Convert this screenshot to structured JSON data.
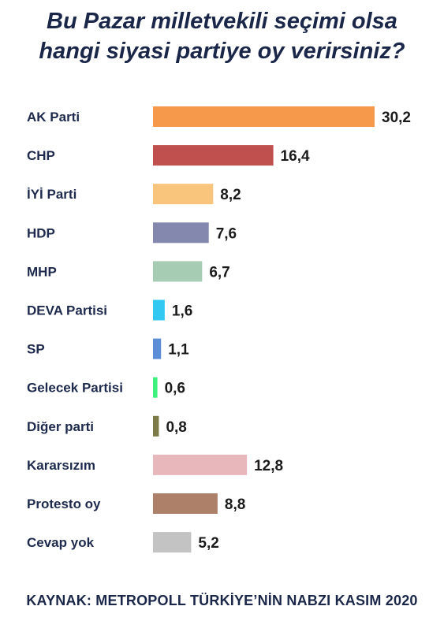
{
  "title_line1": "Bu Pazar milletvekili seçimi olsa",
  "title_line2": "hangi siyasi partiye oy verirsiniz?",
  "source": "KAYNAK: METROPOLL TÜRKİYE’NİN NABZI KASIM 2020",
  "chart_data": {
    "type": "bar",
    "orientation": "horizontal",
    "title": "Bu Pazar milletvekili seçimi olsa hangi siyasi partiye oy verirsiniz?",
    "categories": [
      "AK Parti",
      "CHP",
      "İYİ Parti",
      "HDP",
      "MHP",
      "DEVA Partisi",
      "SP",
      "Gelecek Partisi",
      "Diğer parti",
      "Kararsızım",
      "Protesto oy",
      "Cevap yok"
    ],
    "values": [
      30.2,
      16.4,
      8.2,
      7.6,
      6.7,
      1.6,
      1.1,
      0.6,
      0.8,
      12.8,
      8.8,
      5.2
    ],
    "value_labels": [
      "30,2",
      "16,4",
      "8,2",
      "7,6",
      "6,7",
      "1,6",
      "1,1",
      "0,6",
      "0,8",
      "12,8",
      "8,8",
      "5,2"
    ],
    "colors": [
      "#f7994a",
      "#c0504e",
      "#f9c57c",
      "#8488ae",
      "#a6cdb4",
      "#33c8f2",
      "#5b8ed6",
      "#3ef07c",
      "#7c7b48",
      "#e8b7bc",
      "#ac8069",
      "#c3c3c3"
    ],
    "xlim": [
      0,
      30.2
    ],
    "grid": false,
    "xlabel": "",
    "ylabel": ""
  }
}
